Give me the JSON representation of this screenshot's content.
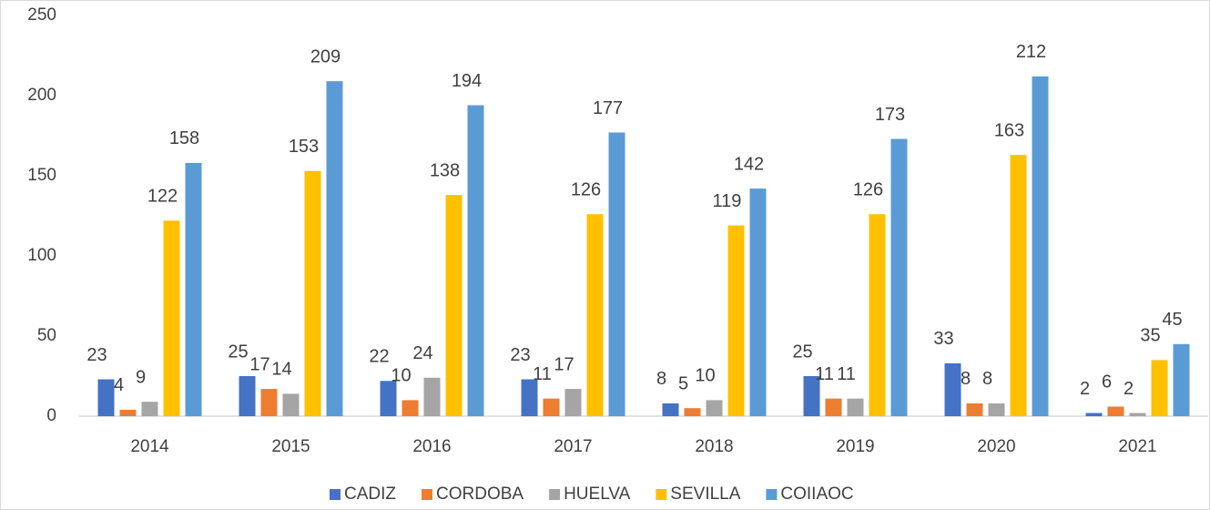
{
  "chart_data": {
    "type": "bar",
    "categories": [
      "2014",
      "2015",
      "2016",
      "2017",
      "2018",
      "2019",
      "2020",
      "2021"
    ],
    "series": [
      {
        "name": "CADIZ",
        "color": "#4472c4",
        "values": [
          23,
          25,
          22,
          23,
          8,
          25,
          33,
          2
        ]
      },
      {
        "name": "CORDOBA",
        "color": "#ed7d31",
        "values": [
          4,
          17,
          10,
          11,
          5,
          11,
          8,
          6
        ]
      },
      {
        "name": "HUELVA",
        "color": "#a5a5a5",
        "values": [
          9,
          14,
          24,
          17,
          10,
          11,
          8,
          2
        ]
      },
      {
        "name": "SEVILLA",
        "color": "#ffc000",
        "values": [
          122,
          153,
          138,
          126,
          119,
          126,
          163,
          35
        ]
      },
      {
        "name": "COIIAOC",
        "color": "#5b9bd5",
        "values": [
          158,
          209,
          194,
          177,
          142,
          173,
          212,
          45
        ]
      }
    ],
    "ylim": [
      0,
      250
    ],
    "yticks": [
      0,
      50,
      100,
      150,
      200,
      250
    ],
    "grid": false,
    "legend": "bottom"
  }
}
